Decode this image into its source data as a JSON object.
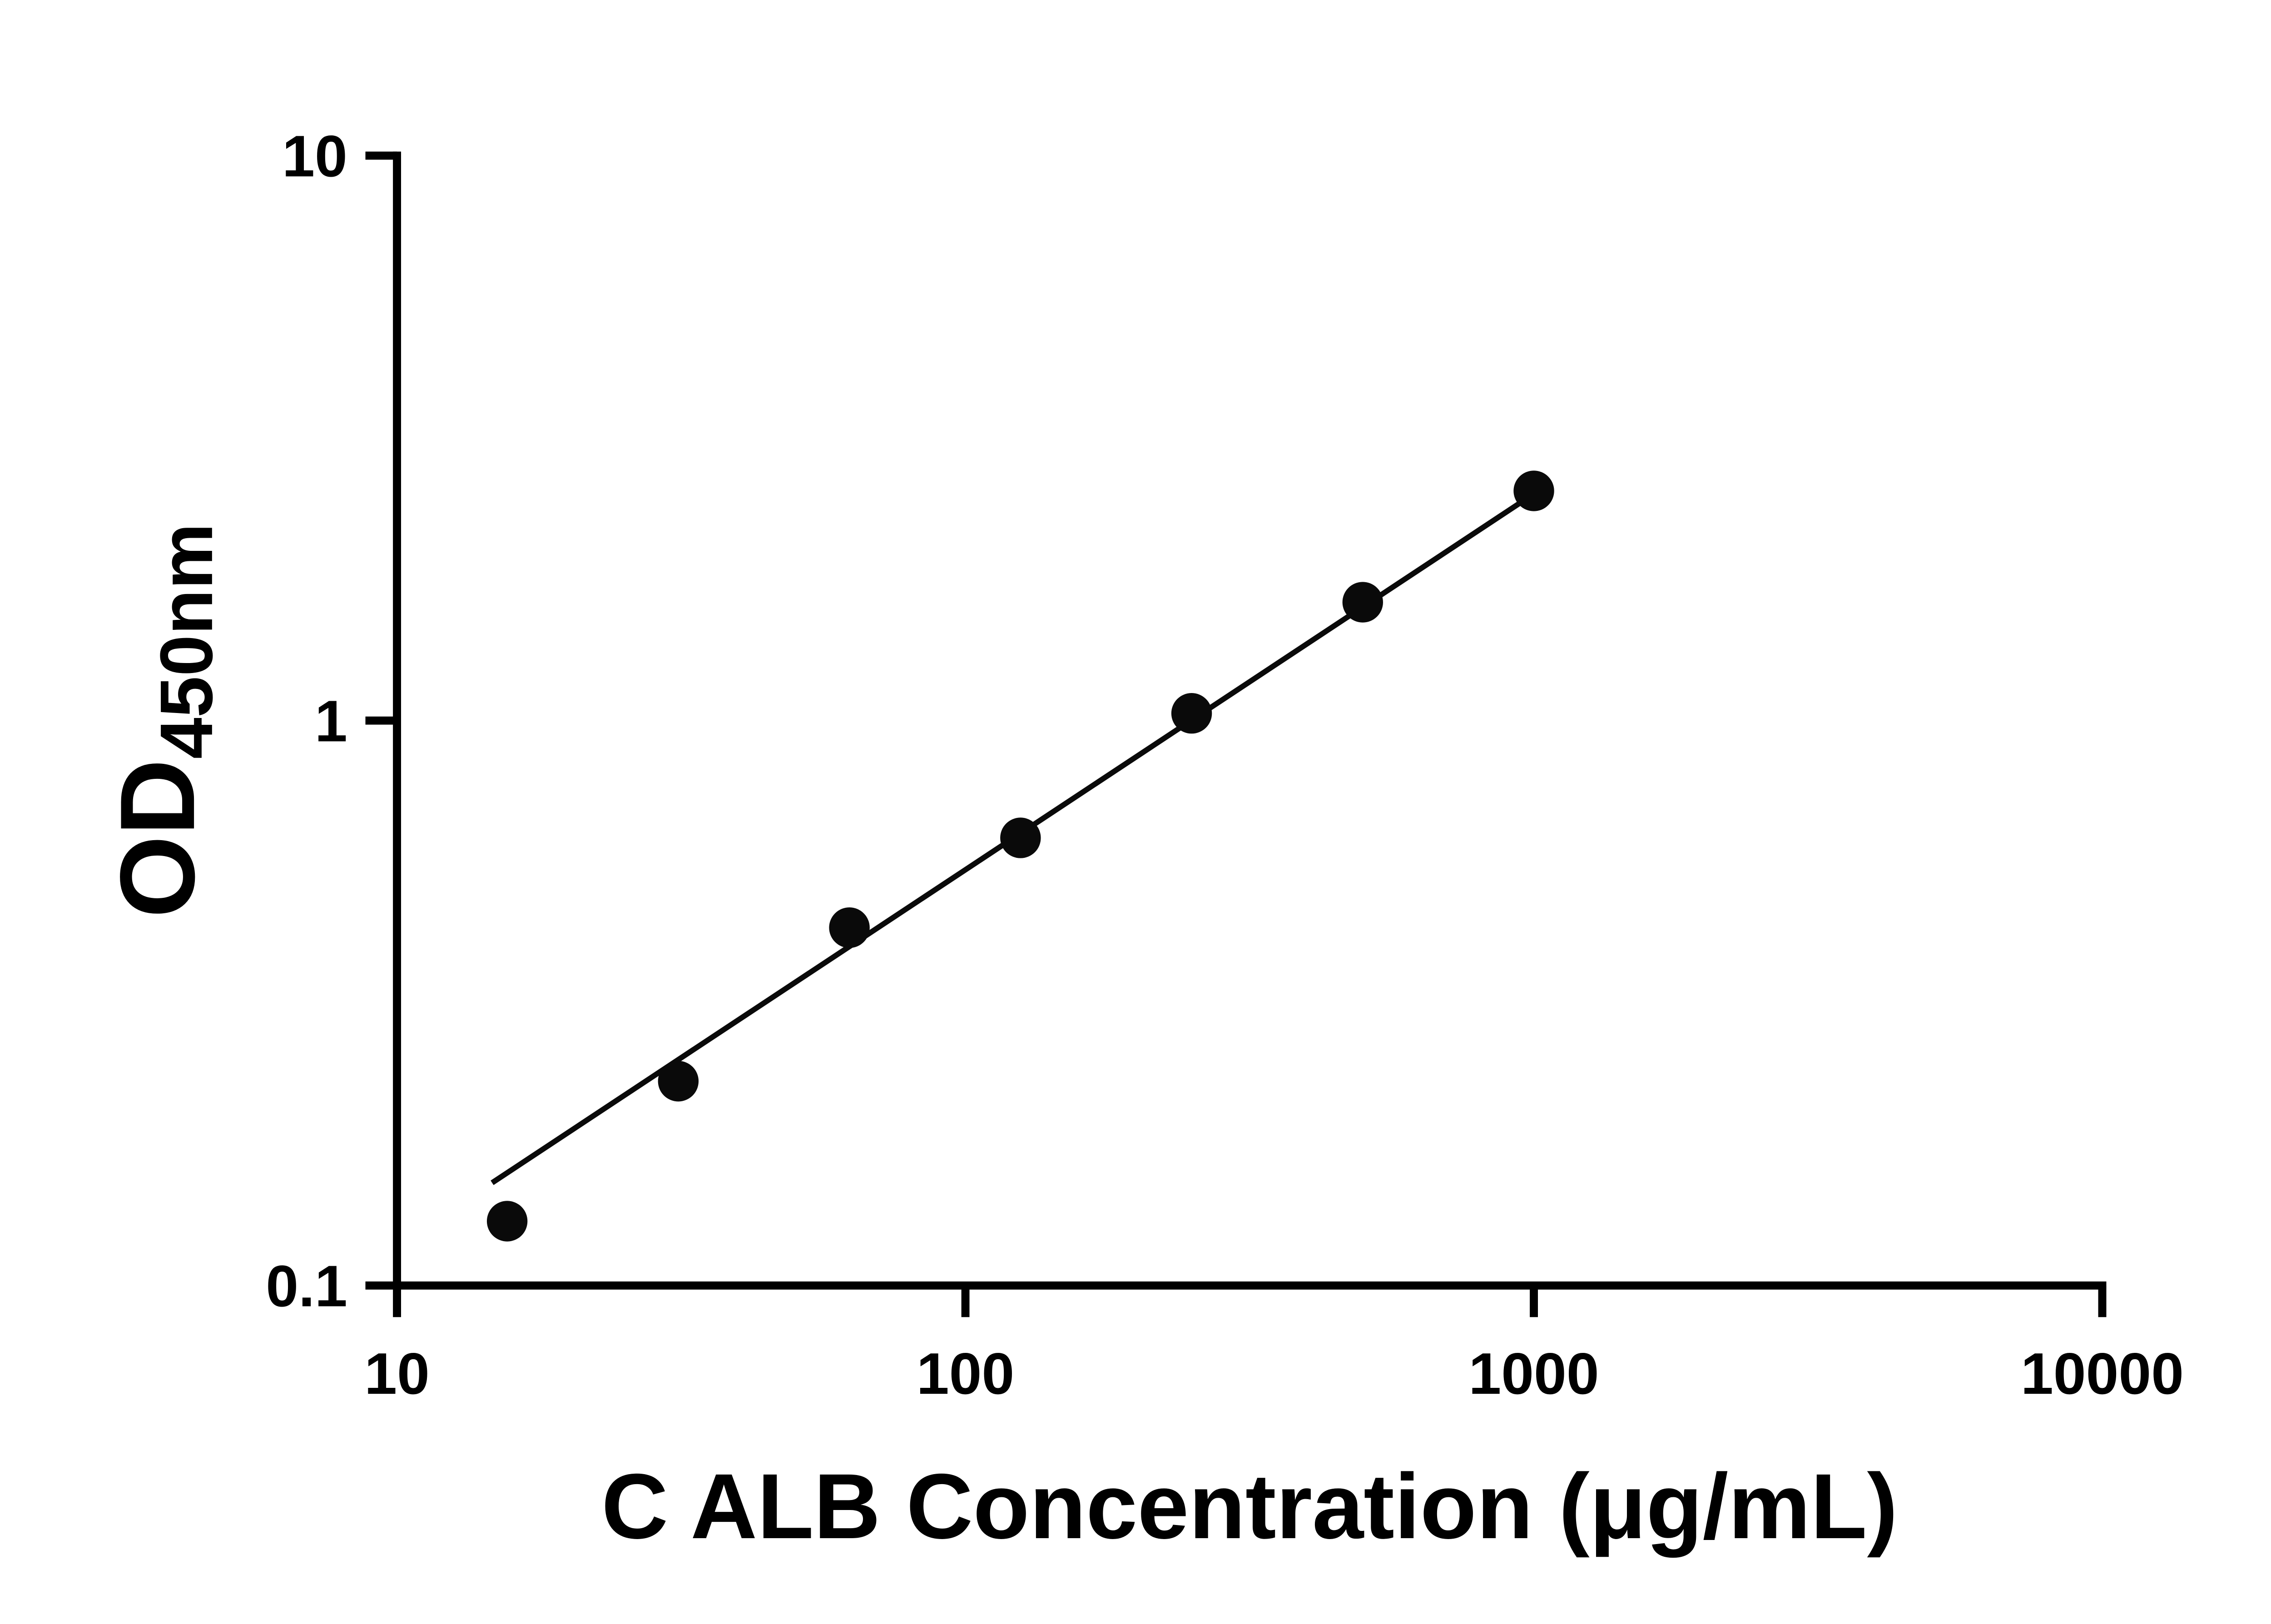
{
  "figure": {
    "background": "#ffffff"
  },
  "chart_data": {
    "type": "scatter",
    "title": "",
    "xlabel": "C ALB Concentration (μg/mL)",
    "ylabel_main": "OD",
    "ylabel_subscript": "450nm",
    "x_scale": "log",
    "y_scale": "log",
    "xlim": [
      10,
      10000
    ],
    "ylim": [
      0.1,
      10
    ],
    "x_tick_values": [
      10,
      100,
      1000,
      10000
    ],
    "x_tick_labels": [
      "10",
      "100",
      "1000",
      "10000"
    ],
    "y_tick_values": [
      0.1,
      1,
      10
    ],
    "y_tick_labels": [
      "0.1",
      "1",
      "10"
    ],
    "grid": false,
    "legend": false,
    "axis_color": "#000000",
    "marker_color": "#0a0a0a",
    "line_color": "#0a0a0a",
    "points": [
      {
        "x": 15.625,
        "y": 0.13
      },
      {
        "x": 31.25,
        "y": 0.23
      },
      {
        "x": 62.5,
        "y": 0.43
      },
      {
        "x": 125,
        "y": 0.62
      },
      {
        "x": 250,
        "y": 1.03
      },
      {
        "x": 500,
        "y": 1.62
      },
      {
        "x": 1000,
        "y": 2.55
      }
    ],
    "trend_line": {
      "x_start": 14.7,
      "y_start": 0.152,
      "x_end": 1000,
      "y_end": 2.52
    }
  }
}
